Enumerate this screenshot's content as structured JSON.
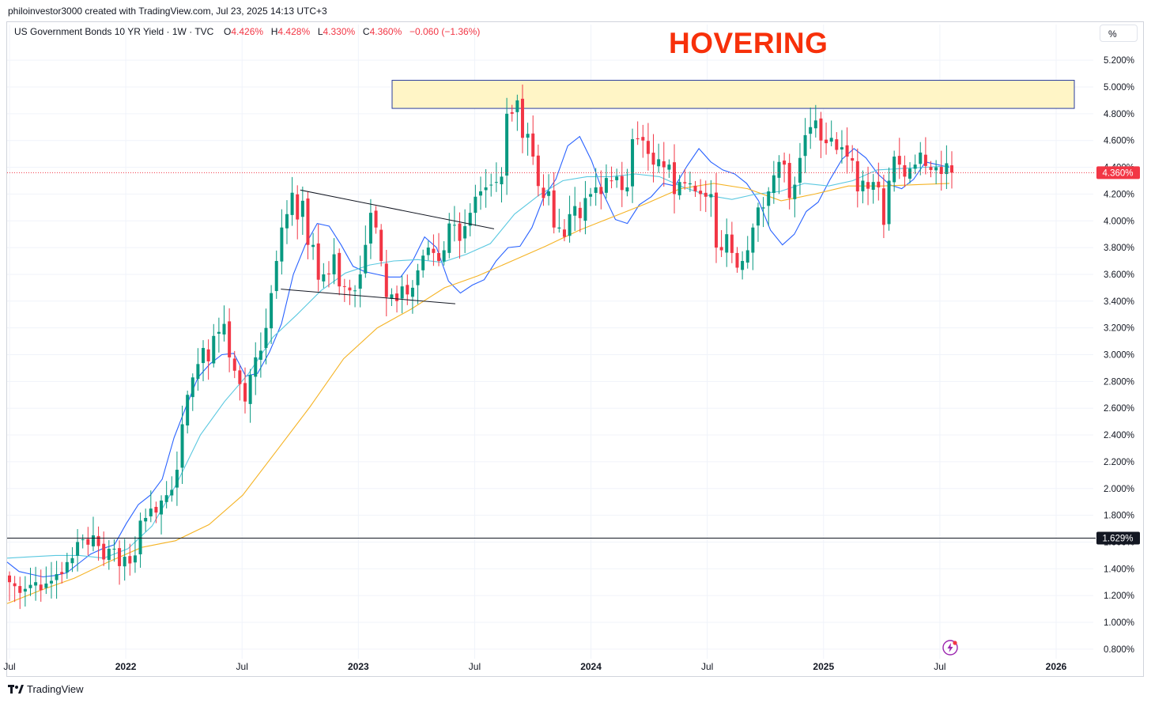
{
  "header": {
    "creator": "philoinvestor3000 created with TradingView.com, Jul 23, 2025 14:13 UTC+3"
  },
  "legend": {
    "symbol": "US Government Bonds 10 YR Yield · 1W · TVC",
    "o_label": "O",
    "o": "4.426%",
    "h_label": "H",
    "h": "4.428%",
    "l_label": "L",
    "l": "4.330%",
    "c_label": "C",
    "c": "4.360%",
    "change": "−0.060 (−1.36%)"
  },
  "annotation": {
    "text": "HOVERING"
  },
  "scale_button": "%",
  "footer": {
    "brand": "TradingView"
  },
  "colors": {
    "up": "#089981",
    "down": "#f23645",
    "ma_fast": "#2962ff",
    "ma_mid": "#5ac8e0",
    "ma_slow": "#f5b324",
    "zone_fill": "#fff5c6",
    "zone_border": "#2a3d9c",
    "annotation": "#f7300a"
  },
  "chart_data": {
    "type": "candlestick",
    "interval": "1W",
    "y_range": [
      0.7,
      5.35
    ],
    "y_ticks": [
      "5.200%",
      "5.000%",
      "4.800%",
      "4.600%",
      "4.400%",
      "4.200%",
      "4.000%",
      "3.800%",
      "3.600%",
      "3.400%",
      "3.200%",
      "3.000%",
      "2.800%",
      "2.600%",
      "2.400%",
      "2.200%",
      "2.000%",
      "1.800%",
      "1.600%",
      "1.400%",
      "1.200%",
      "1.000%",
      "0.800%"
    ],
    "x_ticks": [
      {
        "label": "Jul",
        "year": false,
        "date": "2021-07"
      },
      {
        "label": "2022",
        "year": true,
        "date": "2022-01"
      },
      {
        "label": "Jul",
        "year": false,
        "date": "2022-07"
      },
      {
        "label": "2023",
        "year": true,
        "date": "2023-01"
      },
      {
        "label": "Jul",
        "year": false,
        "date": "2023-07"
      },
      {
        "label": "2024",
        "year": true,
        "date": "2024-01"
      },
      {
        "label": "Jul",
        "year": false,
        "date": "2024-07"
      },
      {
        "label": "2025",
        "year": true,
        "date": "2025-01"
      },
      {
        "label": "Jul",
        "year": false,
        "date": "2025-07"
      },
      {
        "label": "2026",
        "year": true,
        "date": "2026-01"
      }
    ],
    "current_price_label": "4.360%",
    "current_price": 4.36,
    "support_level_label": "1.629%",
    "support_level": 1.629,
    "resistance_zone": {
      "from": 4.84,
      "to": 5.05,
      "start": "2023-04",
      "end": "2026-03"
    },
    "trendlines": [
      {
        "from": [
          "2022-10",
          4.23
        ],
        "to": [
          "2023-08",
          3.94
        ]
      },
      {
        "from": [
          "2022-09",
          3.49
        ],
        "to": [
          "2023-06",
          3.38
        ]
      }
    ],
    "closes": [
      1.3,
      1.27,
      1.22,
      1.25,
      1.28,
      1.3,
      1.24,
      1.29,
      1.31,
      1.36,
      1.36,
      1.45,
      1.48,
      1.6,
      1.62,
      1.58,
      1.65,
      1.57,
      1.47,
      1.55,
      1.55,
      1.42,
      1.49,
      1.44,
      1.5,
      1.76,
      1.78,
      1.85,
      1.82,
      1.91,
      1.95,
      1.99,
      2.14,
      2.48,
      2.7,
      2.83,
      2.93,
      3.05,
      2.95,
      3.14,
      3.17,
      3.23,
      2.98,
      2.88,
      2.78,
      2.65,
      2.85,
      2.98,
      3.03,
      3.2,
      3.46,
      3.7,
      3.95,
      4.05,
      4.21,
      4.01,
      4.15,
      3.82,
      3.82,
      3.56,
      3.6,
      3.6,
      3.75,
      3.51,
      3.51,
      3.48,
      3.48,
      3.6,
      3.82,
      4.06,
      3.95,
      3.7,
      3.43,
      3.45,
      3.4,
      3.51,
      3.45,
      3.5,
      3.63,
      3.74,
      3.8,
      3.76,
      3.7,
      3.78,
      3.98,
      3.97,
      3.85,
      3.96,
      4.06,
      4.18,
      4.22,
      4.25,
      4.27,
      4.29,
      4.33,
      4.8,
      4.8,
      4.9,
      4.62,
      4.65,
      4.48,
      4.26,
      4.17,
      4.22,
      3.95,
      3.95,
      3.88,
      4.05,
      4.11,
      4.02,
      4.17,
      4.2,
      4.25,
      4.2,
      4.32,
      4.3,
      4.33,
      4.23,
      4.25,
      4.61,
      4.61,
      4.6,
      4.5,
      4.42,
      4.46,
      4.4,
      4.42,
      4.2,
      4.29,
      4.28,
      4.28,
      4.22,
      4.2,
      4.18,
      4.2,
      3.8,
      3.78,
      3.9,
      3.76,
      3.65,
      3.7,
      3.78,
      3.95,
      4.1,
      4.1,
      4.22,
      4.34,
      4.44,
      4.42,
      4.17,
      4.27,
      4.47,
      4.64,
      4.7,
      4.75,
      4.6,
      4.58,
      4.62,
      4.53,
      4.55,
      4.48,
      4.45,
      4.22,
      4.3,
      4.24,
      4.29,
      4.25,
      3.97,
      4.3,
      4.48,
      4.42,
      4.33,
      4.39,
      4.42,
      4.51,
      4.41,
      4.38,
      4.4,
      4.35,
      4.43,
      4.36
    ],
    "series": [
      {
        "name": "",
        "values": [
          1.45,
          1.38,
          1.36,
          1.34,
          1.35,
          1.37,
          1.44,
          1.51,
          1.55,
          1.58,
          1.74,
          1.88,
          1.95,
          2.07,
          2.38,
          2.61,
          2.83,
          2.93,
          3.0,
          3.01,
          2.84,
          2.86,
          3.02,
          3.23,
          3.6,
          3.82,
          3.98,
          3.96,
          3.82,
          3.66,
          3.62,
          3.6,
          3.58,
          3.58,
          3.7,
          3.88,
          3.8,
          3.55,
          3.46,
          3.52,
          3.56,
          3.7,
          3.8,
          3.81,
          3.95,
          4.18,
          4.31,
          4.56,
          4.63,
          4.45,
          4.2,
          4.01,
          3.98,
          4.12,
          4.18,
          4.28,
          4.26,
          4.41,
          4.54,
          4.44,
          4.38,
          4.35,
          4.28,
          4.15,
          3.93,
          3.82,
          3.9,
          4.07,
          4.14,
          4.31,
          4.46,
          4.54,
          4.47,
          4.35,
          4.27,
          4.24,
          4.31,
          4.44,
          4.42,
          4.4
        ]
      },
      {
        "name": "",
        "values": [
          1.48,
          1.49,
          1.5,
          1.5,
          1.48,
          1.55,
          1.72,
          2.03,
          2.4,
          2.65,
          2.86,
          3.13,
          3.3,
          3.48,
          3.61,
          3.67,
          3.7,
          3.71,
          3.69,
          3.75,
          3.83,
          4.05,
          4.19,
          4.3,
          4.33,
          4.33,
          4.35,
          4.33,
          4.25,
          4.19,
          4.16,
          4.2,
          4.22,
          4.28,
          4.26,
          4.3,
          4.38,
          4.39,
          4.4,
          4.41
        ]
      },
      {
        "name": "",
        "values": [
          1.14,
          1.24,
          1.33,
          1.45,
          1.56,
          1.61,
          1.73,
          1.95,
          2.28,
          2.61,
          2.97,
          3.2,
          3.34,
          3.5,
          3.59,
          3.7,
          3.81,
          3.93,
          4.03,
          4.13,
          4.24,
          4.28,
          4.24,
          4.15,
          4.2,
          4.26,
          4.26,
          4.27,
          4.28
        ]
      }
    ]
  }
}
